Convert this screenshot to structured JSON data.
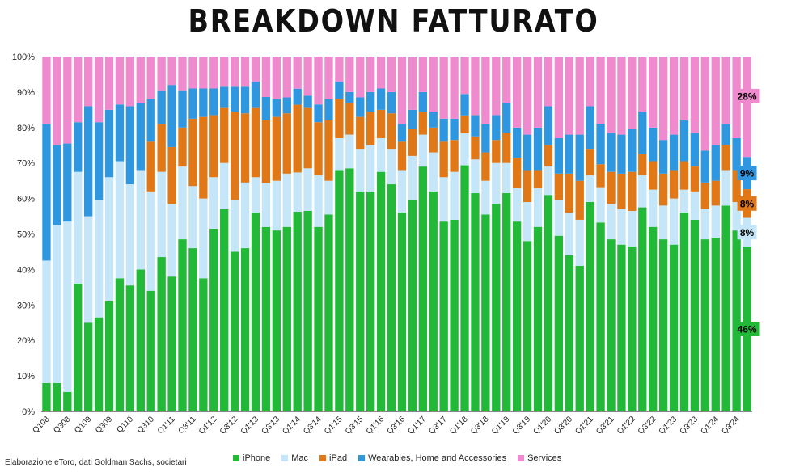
{
  "title": "BREAKDOWN FATTURATO",
  "source_note": "Elaborazione eToro, dati Goldman Sachs, societari",
  "chart_data": {
    "type": "bar",
    "stacked": true,
    "percent": true,
    "ylim": [
      0,
      100
    ],
    "yticks": [
      "0%",
      "10%",
      "20%",
      "30%",
      "40%",
      "50%",
      "60%",
      "70%",
      "80%",
      "90%",
      "100%"
    ],
    "grid": false,
    "legend_position": "bottom",
    "x_tick_labels": [
      "Q108",
      "Q308",
      "Q109",
      "Q309",
      "Q110",
      "Q310",
      "Q1'11",
      "Q3'11",
      "Q1'12",
      "Q3'12",
      "Q1'13",
      "Q3'13",
      "Q1'14",
      "Q3'14",
      "Q1'15",
      "Q3'15",
      "Q1'16",
      "Q3'16",
      "Q1'17",
      "Q3'17",
      "Q1'18",
      "Q3'18",
      "Q1'19",
      "Q3'19",
      "Q1'20",
      "Q3'20",
      "Q1'21",
      "Q3'21",
      "Q1'22",
      "Q3'22",
      "Q1'23",
      "Q3'23",
      "Q1'24",
      "Q3'24"
    ],
    "series": [
      {
        "name": "iPhone",
        "color": "#22b838",
        "values": [
          8,
          8,
          5.5,
          36,
          25,
          26.5,
          31,
          37.5,
          35.5,
          40,
          34,
          43.5,
          38,
          48.5,
          46,
          37.5,
          51.5,
          57,
          45,
          46,
          56,
          52.5,
          51,
          52,
          56,
          56.5,
          52,
          55.5,
          68,
          68.5,
          62,
          62,
          67.5,
          64,
          56,
          59.5,
          69,
          62,
          53.5,
          54,
          69,
          61.5,
          55.5,
          58.5,
          61.5,
          53.5,
          48,
          52,
          61,
          49.5,
          44,
          41,
          59,
          53.5,
          48.5,
          47,
          46.5,
          57.5,
          52,
          48.5,
          47,
          56,
          54,
          48.5,
          49,
          58,
          51,
          46
        ]
      },
      {
        "name": "Mac",
        "color": "#c4e6f8",
        "values": [
          34.5,
          44.5,
          48,
          31.5,
          30,
          33,
          35,
          33,
          28.5,
          28,
          28,
          24,
          20.5,
          20.5,
          17.5,
          22.5,
          14.5,
          13,
          14.5,
          18.5,
          10,
          12.5,
          14,
          15,
          11,
          12,
          14.5,
          9.5,
          9,
          9.5,
          12,
          13,
          9.5,
          10,
          12,
          12.5,
          9,
          11,
          12.5,
          13.5,
          9,
          9.5,
          9.5,
          11.5,
          8.5,
          9.5,
          11,
          11,
          8,
          10,
          12,
          13,
          7.5,
          10,
          10,
          10,
          10,
          9,
          10.5,
          9.5,
          13,
          6.5,
          8,
          8.5,
          9,
          10,
          8,
          8
        ]
      },
      {
        "name": "iPad",
        "color": "#e07818",
        "values": [
          0,
          0,
          0,
          0,
          0,
          0,
          0,
          0,
          0,
          0,
          14,
          13.5,
          16,
          11,
          19,
          23,
          17.5,
          15.5,
          25,
          19.5,
          19.5,
          18,
          18,
          17,
          19,
          17,
          15,
          17,
          11,
          9,
          9,
          9.5,
          8,
          10,
          8,
          7.5,
          6.5,
          7,
          10,
          9,
          5,
          6.5,
          8,
          6.5,
          8.5,
          8.5,
          9,
          5,
          6,
          7.5,
          11,
          11,
          7.5,
          6.5,
          9,
          10,
          11,
          6,
          8,
          9,
          8,
          8,
          7,
          7.5,
          7,
          7,
          9,
          8
        ]
      },
      {
        "name": "Wearables, Home and Accessories",
        "color": "#2f97e0",
        "values": [
          38.5,
          22.5,
          22,
          14,
          31,
          22,
          19,
          16,
          22,
          19,
          12,
          9.5,
          17.5,
          10.5,
          8.5,
          8,
          7.5,
          6,
          7,
          7.5,
          7.5,
          6.5,
          5,
          4.5,
          4.5,
          3.5,
          5,
          6,
          5,
          3,
          5.5,
          5.5,
          6,
          6,
          5,
          5.5,
          5.5,
          4.5,
          6.5,
          6,
          6,
          6,
          8,
          7,
          8.5,
          8.5,
          10,
          12,
          11,
          10,
          11,
          13,
          12,
          11.5,
          11,
          11,
          12,
          12,
          9.5,
          9.5,
          10,
          11.5,
          9.5,
          9,
          10,
          6,
          9,
          9
        ]
      },
      {
        "name": "Services",
        "color": "#f08ace",
        "values": [
          19,
          25,
          24.5,
          18.5,
          14,
          18.5,
          15,
          13.5,
          14,
          13,
          12,
          9.5,
          8,
          9.5,
          9,
          9,
          9,
          8.5,
          8.5,
          8.5,
          7,
          11.5,
          12,
          11.5,
          9,
          11,
          13.5,
          12,
          7,
          10,
          11.5,
          10,
          9,
          10,
          19,
          15,
          10,
          15.5,
          17.5,
          17.5,
          10.5,
          16.5,
          19,
          16.5,
          13,
          20,
          22,
          20,
          14,
          23,
          22,
          22,
          14,
          19,
          21.5,
          22,
          20.5,
          15.5,
          20,
          23.5,
          22,
          18,
          21.5,
          26.5,
          25,
          19,
          23,
          28
        ]
      }
    ],
    "end_labels": [
      {
        "series": "Services",
        "text": "28%"
      },
      {
        "series": "Wearables, Home and Accessories",
        "text": "9%"
      },
      {
        "series": "iPad",
        "text": "8%"
      },
      {
        "series": "Mac",
        "text": "8%"
      },
      {
        "series": "iPhone",
        "text": "46%"
      }
    ]
  }
}
